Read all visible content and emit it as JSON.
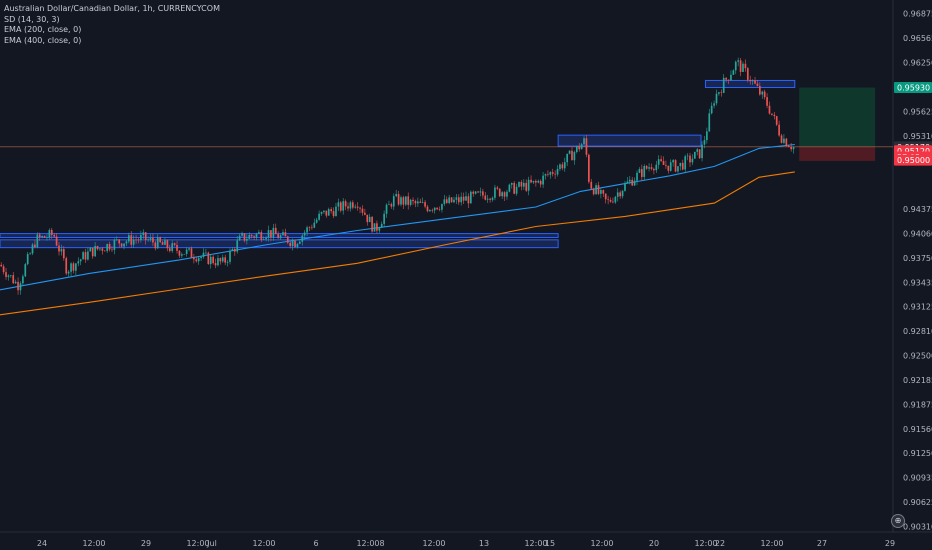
{
  "legend": {
    "symbol": "Australian Dollar/Canadian Dollar, 1h, CURRENCYCOM",
    "indicator_1": "SD (14, 30, 3)",
    "indicator_2": "EMA (200, close, 0)",
    "indicator_3": "EMA (400, close, 0)"
  },
  "price_axis": {
    "ticks": [
      "0.96875",
      "0.96565",
      "0.96250",
      "0.95625",
      "0.95310",
      "0.94375",
      "0.94060",
      "0.93750",
      "0.93435",
      "0.93125",
      "0.92810",
      "0.92500",
      "0.92185",
      "0.91875",
      "0.91560",
      "0.91250",
      "0.90935",
      "0.90625",
      "0.90310"
    ],
    "tags": [
      {
        "label": "0.95930",
        "color": "#089981",
        "text_color": "#ffffff",
        "value": 0.9593
      },
      {
        "label": "0.95170",
        "color": "#2a2e39",
        "text_color": "#ffffff",
        "value": 0.9517
      },
      {
        "label": "0.95120",
        "color": "#f23645",
        "text_color": "#ffffff",
        "value": 0.9512
      },
      {
        "label": "57:05",
        "color": "#f23645",
        "text_color": "#ffffff",
        "value": 0.9504
      },
      {
        "label": "0.95000",
        "color": "#f23645",
        "text_color": "#ffffff",
        "value": 0.95
      }
    ]
  },
  "time_axis": {
    "ticks": [
      "24",
      "12:00",
      "29",
      "12:00",
      "Jul",
      "12:00",
      "6",
      "12:00",
      "8",
      "12:00",
      "13",
      "12:00",
      "15",
      "12:00",
      "20",
      "12:00",
      "22",
      "12:00",
      "27",
      "29"
    ]
  },
  "colors": {
    "background": "#131722",
    "up": "#26a69a",
    "down": "#ef5350",
    "ema200": "#2196f3",
    "ema400": "#f57c00",
    "zone_blue": "#2962ff",
    "profit": "#0f3d2e",
    "loss": "#5c1c22"
  },
  "chart_data": {
    "type": "candlestick",
    "title": "Australian Dollar/Canadian Dollar, 1h, CURRENCYCOM",
    "ylim": [
      0.9024,
      0.9705
    ],
    "x_ticks": [
      "24",
      "12:00",
      "29",
      "12:00",
      "Jul",
      "12:00",
      "6",
      "12:00",
      "8",
      "12:00",
      "13",
      "12:00",
      "15",
      "12:00",
      "20",
      "12:00",
      "22",
      "12:00",
      "27",
      "29"
    ],
    "price_path": [
      [
        0,
        0.9366
      ],
      [
        0.02,
        0.934
      ],
      [
        0.04,
        0.9398
      ],
      [
        0.06,
        0.9405
      ],
      [
        0.075,
        0.936
      ],
      [
        0.1,
        0.9382
      ],
      [
        0.13,
        0.9395
      ],
      [
        0.16,
        0.94
      ],
      [
        0.19,
        0.9388
      ],
      [
        0.22,
        0.9378
      ],
      [
        0.25,
        0.9368
      ],
      [
        0.27,
        0.94
      ],
      [
        0.3,
        0.9408
      ],
      [
        0.33,
        0.9395
      ],
      [
        0.36,
        0.943
      ],
      [
        0.4,
        0.9448
      ],
      [
        0.42,
        0.941
      ],
      [
        0.44,
        0.945
      ],
      [
        0.48,
        0.944
      ],
      [
        0.52,
        0.945
      ],
      [
        0.56,
        0.946
      ],
      [
        0.6,
        0.947
      ],
      [
        0.63,
        0.9495
      ],
      [
        0.655,
        0.9525
      ],
      [
        0.66,
        0.947
      ],
      [
        0.68,
        0.9445
      ],
      [
        0.7,
        0.9468
      ],
      [
        0.73,
        0.9495
      ],
      [
        0.76,
        0.9492
      ],
      [
        0.785,
        0.951
      ],
      [
        0.8,
        0.958
      ],
      [
        0.825,
        0.9625
      ],
      [
        0.84,
        0.9605
      ],
      [
        0.86,
        0.957
      ],
      [
        0.875,
        0.953
      ],
      [
        0.89,
        0.9515
      ]
    ],
    "series": [
      {
        "name": "EMA (200, close, 0)",
        "color": "#2196f3",
        "points": [
          [
            0,
            0.9334
          ],
          [
            0.1,
            0.9355
          ],
          [
            0.2,
            0.9372
          ],
          [
            0.3,
            0.9392
          ],
          [
            0.4,
            0.941
          ],
          [
            0.5,
            0.9425
          ],
          [
            0.6,
            0.944
          ],
          [
            0.65,
            0.946
          ],
          [
            0.7,
            0.947
          ],
          [
            0.75,
            0.948
          ],
          [
            0.8,
            0.9492
          ],
          [
            0.85,
            0.9515
          ],
          [
            0.89,
            0.952
          ]
        ]
      },
      {
        "name": "EMA (400, close, 0)",
        "color": "#f57c00",
        "points": [
          [
            0,
            0.9302
          ],
          [
            0.1,
            0.9318
          ],
          [
            0.2,
            0.9335
          ],
          [
            0.3,
            0.9352
          ],
          [
            0.4,
            0.9368
          ],
          [
            0.5,
            0.9392
          ],
          [
            0.6,
            0.9415
          ],
          [
            0.7,
            0.9428
          ],
          [
            0.8,
            0.9445
          ],
          [
            0.85,
            0.9478
          ],
          [
            0.89,
            0.9485
          ]
        ]
      }
    ],
    "zones": [
      {
        "x0": 0,
        "x1": 0.625,
        "y0": 0.9398,
        "y1": 0.9388
      },
      {
        "x0": 0,
        "x1": 0.625,
        "y0": 0.9406,
        "y1": 0.9401
      },
      {
        "x0": 0.625,
        "x1": 0.785,
        "y0": 0.9532,
        "y1": 0.9518
      },
      {
        "x0": 0.79,
        "x1": 0.89,
        "y0": 0.9602,
        "y1": 0.9593
      }
    ],
    "position": {
      "entry": 0.9517,
      "target": 0.9593,
      "stop": 0.9505,
      "x0": 0.895,
      "x1": 0.98
    },
    "last_price": 0.9517
  }
}
